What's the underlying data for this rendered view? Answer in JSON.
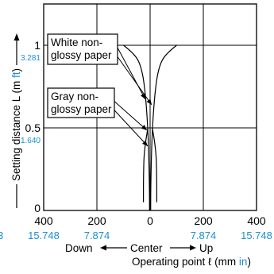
{
  "chart_data": {
    "type": "line",
    "title": "",
    "x_axis": {
      "unit_mm": "mm",
      "unit_in": "in",
      "range_mm": [
        -400,
        400
      ],
      "ticks": [
        {
          "mm": "400",
          "in": "15.748"
        },
        {
          "mm": "200",
          "in": "7.874"
        },
        {
          "mm": "0",
          "in": ""
        },
        {
          "mm": "200",
          "in": "7.874"
        },
        {
          "mm": "400",
          "in": "15.748"
        }
      ],
      "left_edge_partial_in": "3",
      "direction_labels": {
        "down": "Down",
        "center": "Center",
        "up": "Up"
      },
      "label_prefix": "Operating point ℓ (mm ",
      "label_in": "in",
      "label_suffix": ")"
    },
    "y_axis": {
      "range_m": [
        0,
        1.25
      ],
      "ticks": [
        {
          "m": "0",
          "ft": ""
        },
        {
          "m": "0.5",
          "ft": "1.640"
        },
        {
          "m": "1",
          "ft": "3.281"
        }
      ],
      "label_prefix": "Setting distance L (m ",
      "label_ft": "ft",
      "label_suffix": ")"
    },
    "grid": true,
    "series": [
      {
        "name": "White non-glossy paper",
        "left": [
          [
            -100,
            1.0
          ],
          [
            -60,
            0.95
          ],
          [
            -35,
            0.88
          ],
          [
            -20,
            0.75
          ],
          [
            -8,
            0.5
          ],
          [
            -3,
            0.2
          ],
          [
            -2,
            0.0
          ]
        ],
        "right": [
          [
            100,
            1.0
          ],
          [
            60,
            0.95
          ],
          [
            35,
            0.88
          ],
          [
            20,
            0.75
          ],
          [
            8,
            0.5
          ],
          [
            3,
            0.2
          ],
          [
            2,
            0.0
          ]
        ]
      },
      {
        "name": "Gray non-glossy paper",
        "left": [
          [
            -8,
            0.5
          ],
          [
            -22,
            0.38
          ],
          [
            -25,
            0.2
          ],
          [
            -25,
            0.05
          ]
        ],
        "right": [
          [
            8,
            0.5
          ],
          [
            22,
            0.38
          ],
          [
            25,
            0.2
          ],
          [
            25,
            0.05
          ]
        ]
      }
    ],
    "annotations": [
      {
        "lines": [
          "White non-",
          "glossy paper"
        ]
      },
      {
        "lines": [
          "Gray non-",
          "glossy paper"
        ]
      }
    ]
  }
}
